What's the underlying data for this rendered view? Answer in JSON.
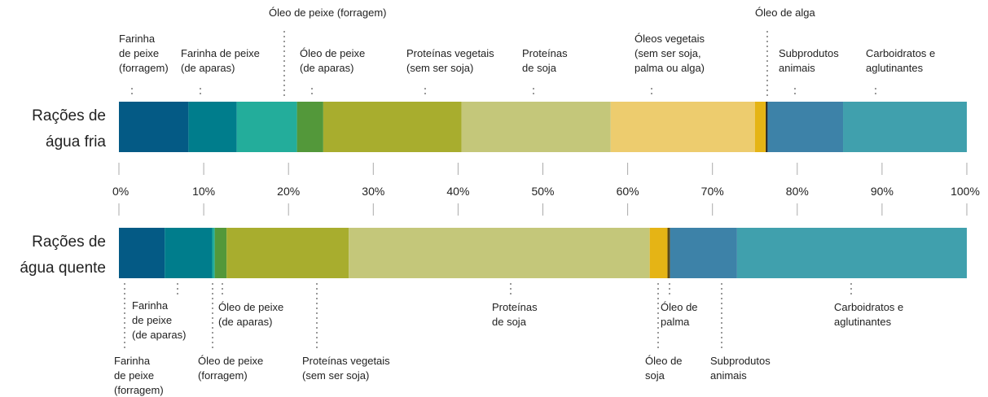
{
  "chart_data": {
    "type": "stacked-bar",
    "xlim": [
      0,
      100
    ],
    "xticks": [
      {
        "value": 0,
        "label": "0%"
      },
      {
        "value": 10,
        "label": "10%"
      },
      {
        "value": 20,
        "label": "20%"
      },
      {
        "value": 30,
        "label": "30%"
      },
      {
        "value": 40,
        "label": "40%"
      },
      {
        "value": 50,
        "label": "50%"
      },
      {
        "value": 60,
        "label": "60%"
      },
      {
        "value": 70,
        "label": "70%"
      },
      {
        "value": 80,
        "label": "80%"
      },
      {
        "value": 90,
        "label": "90%"
      },
      {
        "value": 100,
        "label": "100%"
      }
    ],
    "bars": [
      {
        "name": [
          "Rações de",
          "água fria"
        ],
        "segments": [
          {
            "label": [
              "Farinha",
              "de peixe",
              "(forragem)"
            ],
            "value": 8.2,
            "color": "#045a85"
          },
          {
            "label": [
              "Farinha de peixe",
              "(de aparas)"
            ],
            "value": 5.7,
            "color": "#007d8c"
          },
          {
            "label": [
              "Óleo de peixe (forragem)"
            ],
            "value": 7.1,
            "color": "#23ad9b"
          },
          {
            "label": [
              "Óleo de peixe",
              "(de aparas)"
            ],
            "value": 3.1,
            "color": "#53983a"
          },
          {
            "label": [
              "Proteínas vegetais",
              "(sem ser soja)"
            ],
            "value": 16.3,
            "color": "#a8ad2e"
          },
          {
            "label": [
              "Proteínas",
              "de soja"
            ],
            "value": 17.6,
            "color": "#c4c77a"
          },
          {
            "label": [
              "Óleos vegetais",
              "(sem ser soja,",
              "palma ou alga)"
            ],
            "value": 17.0,
            "color": "#edcc6e"
          },
          {
            "label": null,
            "value": 1.3,
            "color": "#e5b415"
          },
          {
            "label": [
              "Óleo de alga"
            ],
            "value": 0.2,
            "color": "#1a1a1a"
          },
          {
            "label": [
              "Subprodutos",
              "animais"
            ],
            "value": 8.9,
            "color": "#3d82a8"
          },
          {
            "label": [
              "Carboidratos e",
              "aglutinantes"
            ],
            "value": 14.6,
            "color": "#40a0ad"
          }
        ]
      },
      {
        "name": [
          "Rações de",
          "água quente"
        ],
        "segments": [
          {
            "label": [
              "Farinha",
              "de peixe",
              "(forragem)"
            ],
            "value": 5.4,
            "color": "#045a85"
          },
          {
            "label": [
              "Farinha",
              "de peixe",
              "(de aparas)"
            ],
            "value": 5.6,
            "color": "#007d8c"
          },
          {
            "label": [
              "Óleo de peixe",
              "(forragem)"
            ],
            "value": 0.3,
            "color": "#23ad9b"
          },
          {
            "label": [
              "Óleo de peixe",
              "(de aparas)"
            ],
            "value": 1.4,
            "color": "#53983a"
          },
          {
            "label": [
              "Proteínas vegetais",
              "(sem ser soja)"
            ],
            "value": 14.4,
            "color": "#a8ad2e"
          },
          {
            "label": [
              "Proteínas",
              "de soja"
            ],
            "value": 35.5,
            "color": "#c4c77a"
          },
          {
            "label": [
              "Óleo de",
              "soja"
            ],
            "value": 2.1,
            "color": "#e5b415"
          },
          {
            "label": [
              "Óleo de",
              "palma"
            ],
            "value": 0.3,
            "color": "#5a4a1a"
          },
          {
            "label": [
              "Subprodutos",
              "animais"
            ],
            "value": 7.9,
            "color": "#3d82a8"
          },
          {
            "label": [
              "Carboidratos e",
              "aglutinantes"
            ],
            "value": 27.1,
            "color": "#40a0ad"
          }
        ]
      }
    ]
  }
}
